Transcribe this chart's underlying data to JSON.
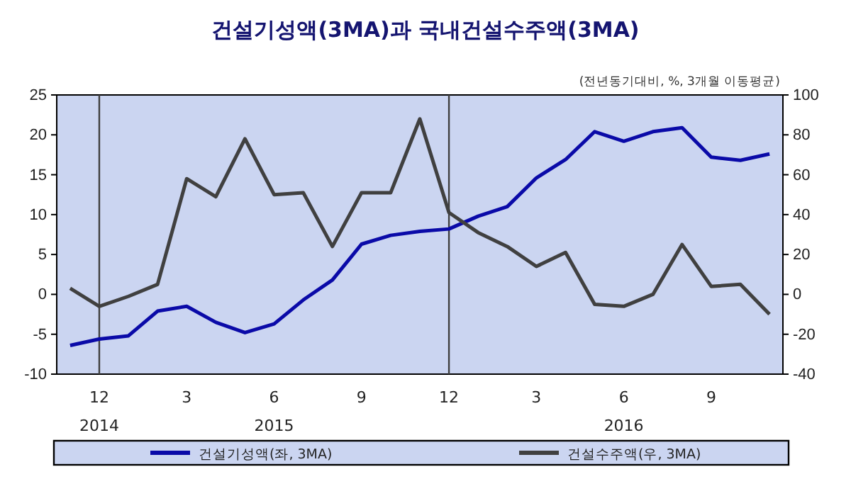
{
  "chart_data": {
    "type": "line",
    "title": "건설기성액(3MA)과 국내건설수주액(3MA)",
    "subtitle": "(전년동기대비, %, 3개월 이동평균)",
    "categories": [
      null,
      "12\n2014",
      null,
      null,
      "3",
      null,
      null,
      "6\n2015",
      null,
      null,
      "9",
      null,
      null,
      "12",
      null,
      null,
      "3",
      null,
      null,
      "6\n2016",
      null,
      null,
      "9",
      null,
      null
    ],
    "series": [
      {
        "name": "건설기성액(좌, 3MA)",
        "color": "#0a0aa8",
        "values": [
          -6.4,
          -5.6,
          -5.2,
          -2.1,
          -1.5,
          -3.5,
          -4.8,
          -3.7,
          -0.7,
          1.8,
          6.3,
          7.4,
          7.9,
          8.2,
          9.8,
          11.0,
          14.6,
          16.9,
          20.4,
          19.2,
          20.4,
          20.9,
          17.2,
          16.8,
          17.6
        ]
      },
      {
        "name": "건설수주액(우, 3MA)",
        "color": "#404040",
        "axis": "y2",
        "values": [
          3,
          -6,
          -1,
          5,
          58,
          49,
          78,
          50,
          51,
          24,
          51,
          51,
          88,
          41,
          31,
          24,
          14,
          21,
          -5,
          -6,
          0,
          25,
          4,
          5,
          -10
        ]
      }
    ],
    "ylim": [
      -10,
      25
    ],
    "yticks": [
      -10,
      -5,
      0,
      5,
      10,
      15,
      20,
      25
    ],
    "y2lim": [
      -40,
      100
    ],
    "y2ticks": [
      -40,
      -20,
      0,
      20,
      40,
      60,
      80,
      100
    ],
    "ref_lines": [
      {
        "axis": "x",
        "value": "12\n2014",
        "color": "#404040"
      },
      {
        "axis": "x",
        "value": "12",
        "color": "#404040"
      }
    ],
    "legend": "bottom",
    "grid": false,
    "line_style": "solid",
    "marker": "none"
  }
}
